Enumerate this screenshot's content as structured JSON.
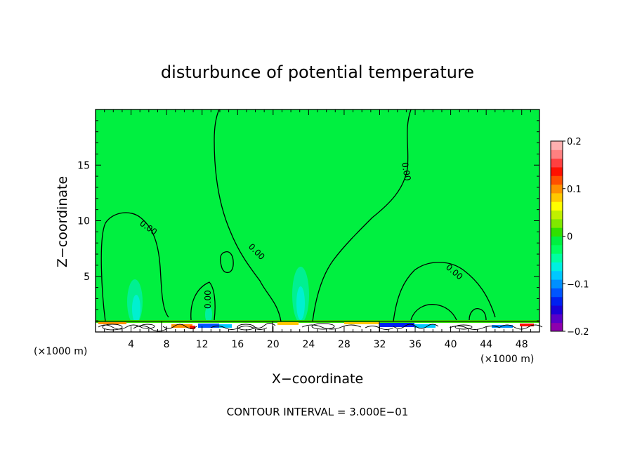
{
  "chart_data": {
    "type": "heatmap",
    "title": "disturbunce of potential temperature",
    "xlabel": "X−coordinate",
    "ylabel": "Z−coordinate",
    "x_unit_left": "(×1000 m)",
    "x_unit_right": "(×1000 m)",
    "xlim": [
      0,
      50
    ],
    "ylim": [
      0,
      20
    ],
    "x_ticks": [
      4,
      8,
      12,
      16,
      20,
      24,
      28,
      32,
      36,
      40,
      44,
      48
    ],
    "y_ticks": [
      5,
      10,
      15
    ],
    "contour_interval_text": "CONTOUR INTERVAL = 3.000E−01",
    "contour_label": "0.00",
    "colorbar": {
      "range": [
        -0.2,
        0.2
      ],
      "tick_values": [
        0.2,
        0.1,
        0,
        -0.1,
        -0.2
      ],
      "tick_labels": [
        "0.2",
        "0.1",
        "0",
        "−0.1",
        "−0.2"
      ],
      "colors": [
        "#8e00ad",
        "#5a00c8",
        "#1a00d8",
        "#0020f0",
        "#0055ff",
        "#0090ff",
        "#00c8ff",
        "#00f0e0",
        "#00ffa0",
        "#00ff60",
        "#00f040",
        "#30e000",
        "#80e800",
        "#c0f000",
        "#ffff00",
        "#ffc800",
        "#ff9000",
        "#ff5000",
        "#ff1000",
        "#ff4040",
        "#ff8080",
        "#ffb0b0"
      ]
    },
    "field": {
      "background_value": 0,
      "background_color": "#00f040"
    }
  }
}
